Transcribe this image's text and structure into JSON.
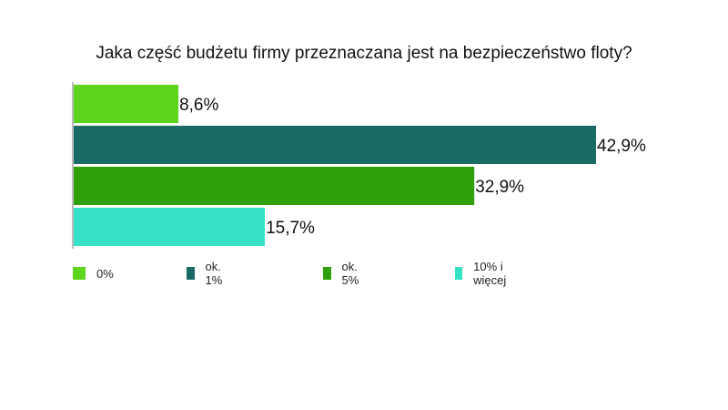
{
  "chart_data": {
    "type": "bar",
    "orientation": "horizontal",
    "title": "Jaka część budżetu firmy przeznaczana jest na bezpieczeństwo floty?",
    "categories": [
      "0%",
      "ok. 1%",
      "ok. 5%",
      "10% i więcej"
    ],
    "values": [
      8.6,
      42.9,
      32.9,
      15.7
    ],
    "value_labels": [
      "8,6%",
      "42,9%",
      "32,9%",
      "15,7%"
    ],
    "colors": [
      "#5ed51d",
      "#1a6b66",
      "#2fa00a",
      "#35e2c8"
    ],
    "legend": "bottom",
    "grid": false,
    "xlim": [
      0,
      50
    ]
  }
}
